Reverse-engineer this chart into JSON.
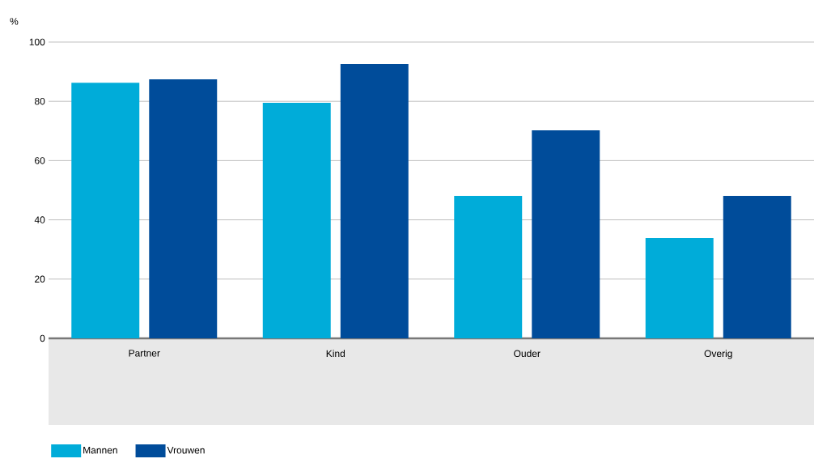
{
  "chart_data": {
    "type": "bar",
    "ylabel": "%",
    "categories": [
      "Partner",
      "Kind",
      "Ouder",
      "Overig"
    ],
    "series": [
      {
        "name": "Mannen",
        "color": "#00acd9",
        "values": [
          86.3,
          79.5,
          48.1,
          33.9
        ]
      },
      {
        "name": "Vrouwen",
        "color": "#004c9a",
        "values": [
          87.4,
          92.6,
          70.2,
          48.1
        ]
      }
    ],
    "ylim": [
      0,
      100
    ],
    "yticks": [
      0,
      20,
      40,
      60,
      80,
      100
    ],
    "grid": "y",
    "legend": "bottom left"
  }
}
